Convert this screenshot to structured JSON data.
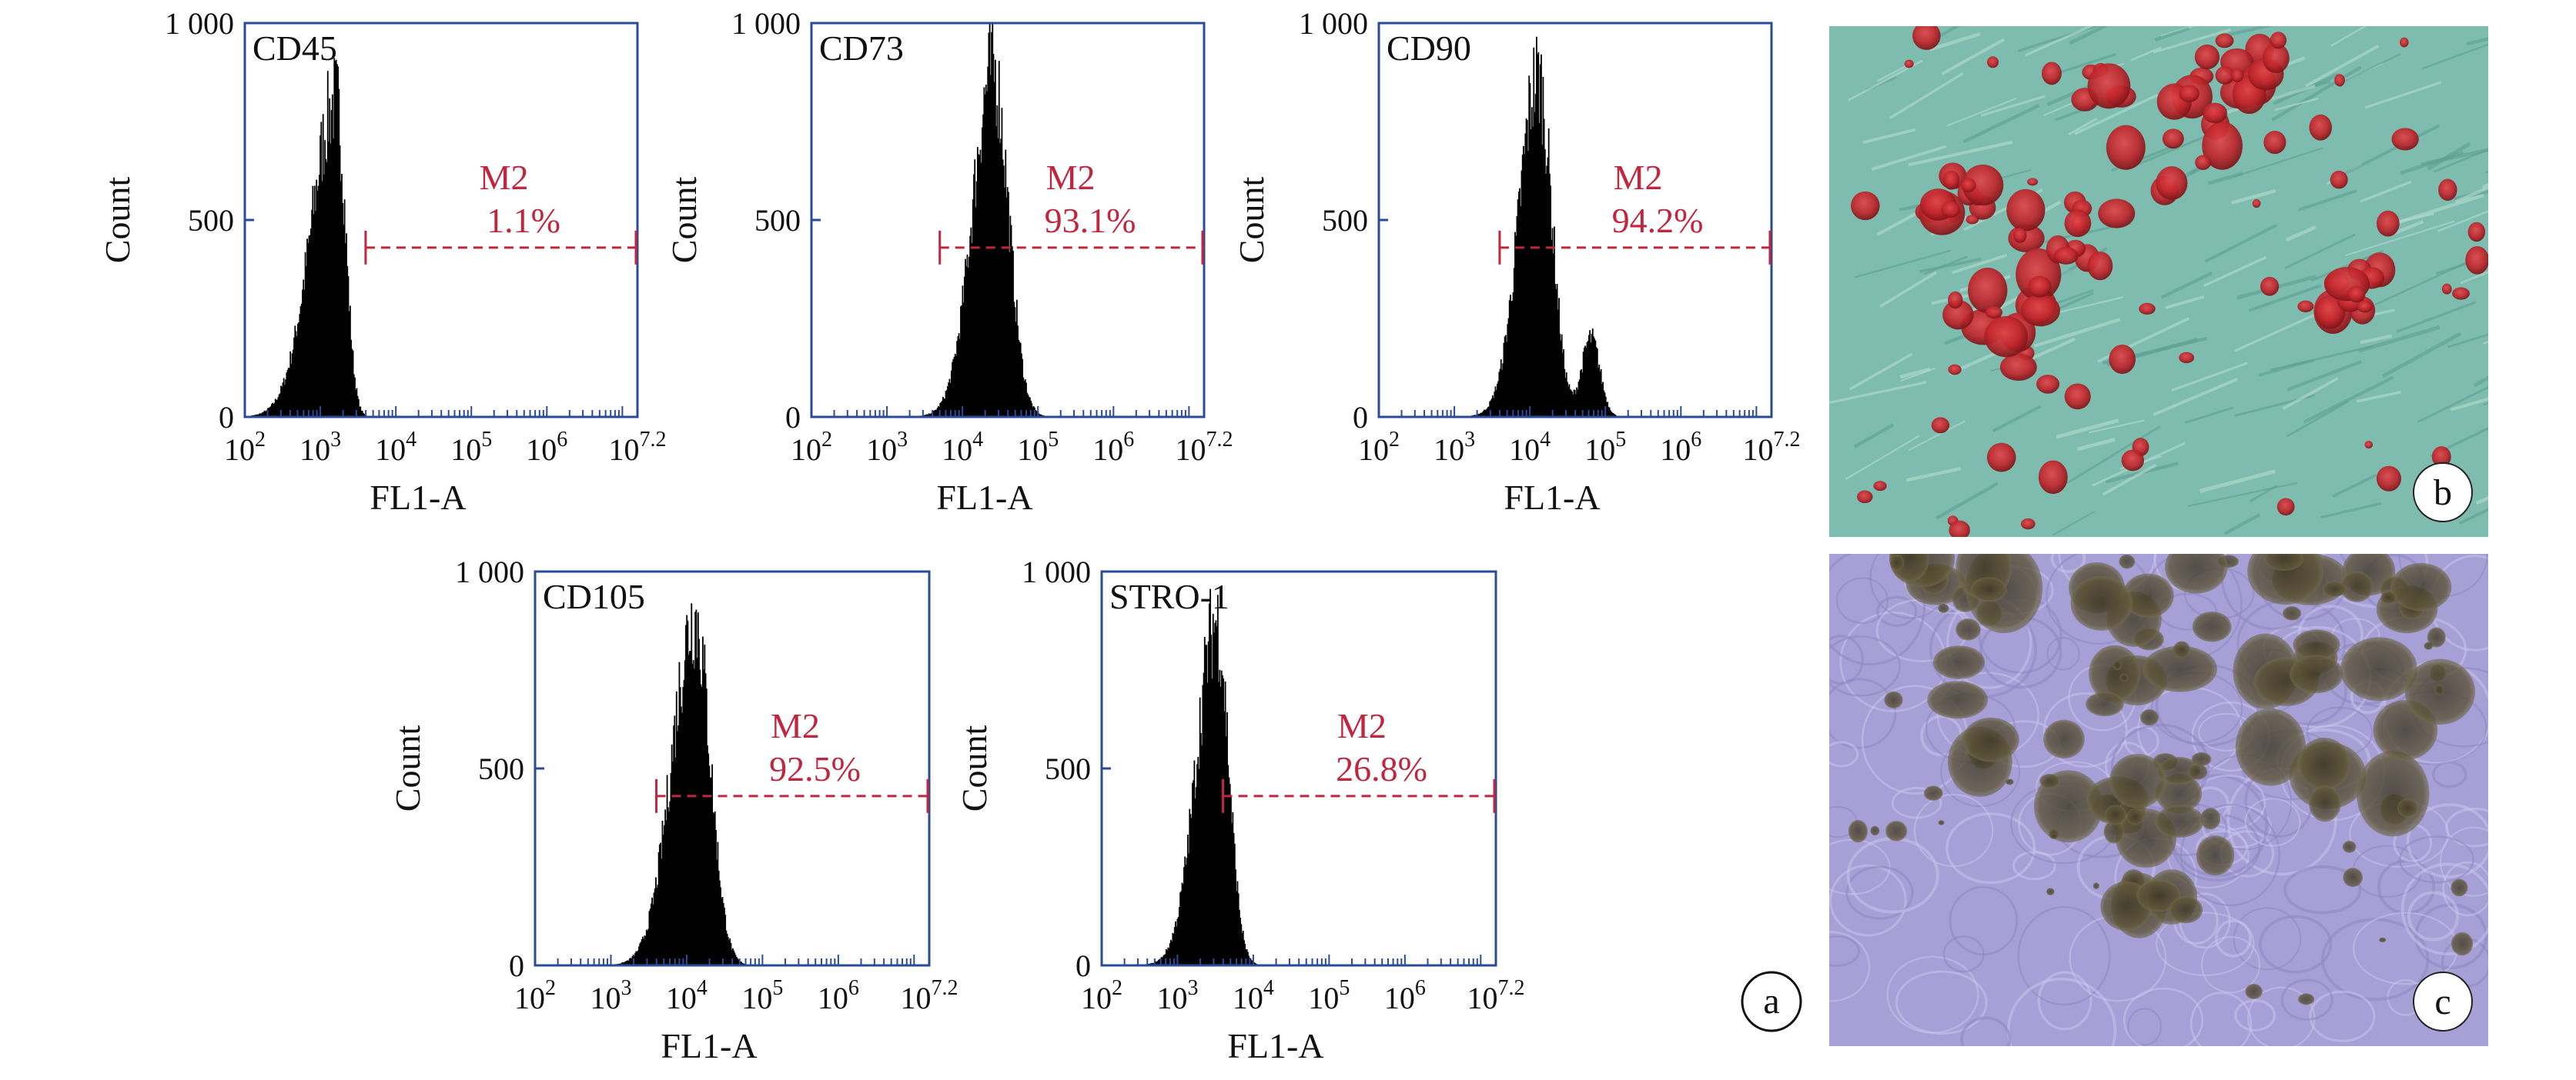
{
  "colors": {
    "axis": "#2a4a9a",
    "histogram": "#000000",
    "gate": "#c0273e",
    "stain_b_background": "#7dbcae",
    "stain_b_cells": "#c0272d",
    "stain_c_background": "#a7a0d6",
    "stain_c_deposits": "#5e5539"
  },
  "panel_letters": {
    "a": "a",
    "b": "b",
    "c": "c"
  },
  "chart_data": [
    {
      "type": "area",
      "title": "CD45",
      "xlabel": "FL1-A",
      "ylabel": "Count",
      "x_scale": "log10",
      "xlim": [
        100,
        15848932
      ],
      "ylim": [
        0,
        1000
      ],
      "xticks": [
        {
          "b": "10",
          "e": "2"
        },
        {
          "b": "10",
          "e": "3"
        },
        {
          "b": "10",
          "e": "4"
        },
        {
          "b": "10",
          "e": "5"
        },
        {
          "b": "10",
          "e": "6"
        },
        {
          "b": "10",
          "e": "7.2"
        }
      ],
      "yticks": [
        "0",
        "500",
        "1 000"
      ],
      "peak_fl1": 1600,
      "peak_count": 800,
      "sigma_left": 0.33,
      "sigma_right": 0.12,
      "gate": {
        "name": "M2",
        "percent": "1.1%",
        "from": 3981,
        "to": 15848932,
        "count": 430
      }
    },
    {
      "type": "area",
      "title": "CD73",
      "xlabel": "FL1-A",
      "ylabel": "Count",
      "x_scale": "log10",
      "xlim": [
        100,
        15848932
      ],
      "ylim": [
        0,
        1000
      ],
      "xticks": [
        {
          "b": "10",
          "e": "2"
        },
        {
          "b": "10",
          "e": "3"
        },
        {
          "b": "10",
          "e": "4"
        },
        {
          "b": "10",
          "e": "5"
        },
        {
          "b": "10",
          "e": "6"
        },
        {
          "b": "10",
          "e": "7.2"
        }
      ],
      "yticks": [
        "0",
        "500",
        "1 000"
      ],
      "peak_fl1": 25000,
      "peak_count": 880,
      "sigma_left": 0.27,
      "sigma_right": 0.2,
      "gate": {
        "name": "M2",
        "percent": "93.1%",
        "from": 5012,
        "to": 15848932,
        "count": 430
      }
    },
    {
      "type": "area",
      "title": "CD90",
      "xlabel": "FL1-A",
      "ylabel": "Count",
      "x_scale": "log10",
      "xlim": [
        100,
        15848932
      ],
      "ylim": [
        0,
        1000
      ],
      "xticks": [
        {
          "b": "10",
          "e": "2"
        },
        {
          "b": "10",
          "e": "3"
        },
        {
          "b": "10",
          "e": "4"
        },
        {
          "b": "10",
          "e": "5"
        },
        {
          "b": "10",
          "e": "6"
        },
        {
          "b": "10",
          "e": "7.2"
        }
      ],
      "yticks": [
        "0",
        "500",
        "1 000"
      ],
      "peak_fl1": 12600,
      "peak_count": 860,
      "sigma_left": 0.25,
      "sigma_right": 0.18,
      "shoulder_fl1": 63000,
      "shoulder_count": 200,
      "gate": {
        "name": "M2",
        "percent": "94.2%",
        "from": 3981,
        "to": 15848932,
        "count": 430
      }
    },
    {
      "type": "area",
      "title": "CD105",
      "xlabel": "FL1-A",
      "ylabel": "Count",
      "x_scale": "log10",
      "xlim": [
        100,
        15848932
      ],
      "ylim": [
        0,
        1000
      ],
      "xticks": [
        {
          "b": "10",
          "e": "2"
        },
        {
          "b": "10",
          "e": "3"
        },
        {
          "b": "10",
          "e": "4"
        },
        {
          "b": "10",
          "e": "5"
        },
        {
          "b": "10",
          "e": "6"
        },
        {
          "b": "10",
          "e": "7.2"
        }
      ],
      "yticks": [
        "0",
        "500",
        "1 000"
      ],
      "peak_fl1": 12600,
      "peak_count": 880,
      "sigma_left": 0.3,
      "sigma_right": 0.2,
      "gate": {
        "name": "M2",
        "percent": "92.5%",
        "from": 3981,
        "to": 15848932,
        "count": 430
      }
    },
    {
      "type": "area",
      "title": "STRO-1",
      "xlabel": "FL1-A",
      "ylabel": "Count",
      "x_scale": "log10",
      "xlim": [
        100,
        15848932
      ],
      "ylim": [
        0,
        1000
      ],
      "xticks": [
        {
          "b": "10",
          "e": "2"
        },
        {
          "b": "10",
          "e": "3"
        },
        {
          "b": "10",
          "e": "4"
        },
        {
          "b": "10",
          "e": "5"
        },
        {
          "b": "10",
          "e": "6"
        },
        {
          "b": "10",
          "e": "7.2"
        }
      ],
      "yticks": [
        "0",
        "500",
        "1 000"
      ],
      "peak_fl1": 3200,
      "peak_count": 870,
      "sigma_left": 0.26,
      "sigma_right": 0.16,
      "gate": {
        "name": "M2",
        "percent": "26.8%",
        "from": 3981,
        "to": 15848932,
        "count": 430
      }
    }
  ]
}
